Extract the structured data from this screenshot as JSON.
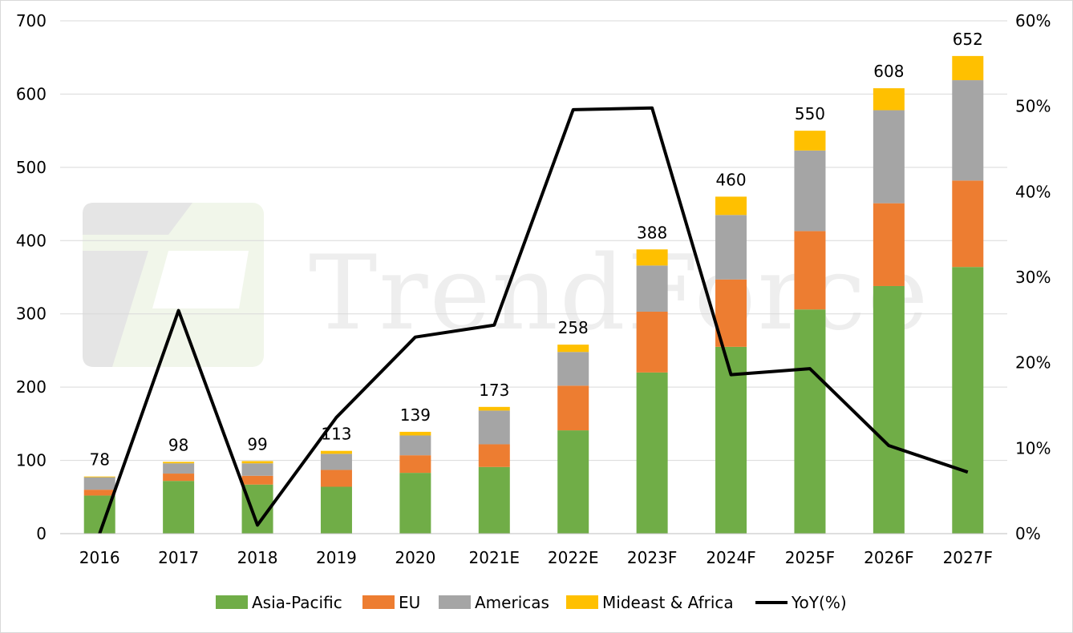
{
  "watermark": {
    "text": "TrendForce"
  },
  "chart_data": {
    "type": "bar",
    "stacked": true,
    "categories": [
      "2016",
      "2017",
      "2018",
      "2019",
      "2020",
      "2021E",
      "2022E",
      "2023F",
      "2024F",
      "2025F",
      "2026F",
      "2027F"
    ],
    "series": [
      {
        "name": "Asia-Pacific",
        "color": "#70ad47",
        "values": [
          52,
          72,
          67,
          64,
          83,
          91,
          141,
          220,
          255,
          306,
          338,
          364
        ]
      },
      {
        "name": "EU",
        "color": "#ed7d31",
        "values": [
          8,
          10,
          12,
          23,
          24,
          31,
          61,
          83,
          92,
          107,
          113,
          118
        ]
      },
      {
        "name": "Americas",
        "color": "#a5a5a5",
        "values": [
          17,
          14,
          17,
          22,
          27,
          46,
          46,
          63,
          88,
          110,
          127,
          137
        ]
      },
      {
        "name": "Mideast & Africa",
        "color": "#ffc000",
        "values": [
          1,
          2,
          3,
          4,
          5,
          5,
          10,
          22,
          25,
          27,
          30,
          33
        ]
      }
    ],
    "totals": [
      78,
      98,
      99,
      113,
      139,
      173,
      258,
      388,
      460,
      550,
      608,
      652
    ],
    "line": {
      "name": "YoY(%)",
      "color": "#000000",
      "values": [
        0,
        26.1,
        1.0,
        13.6,
        23.0,
        24.4,
        49.6,
        49.8,
        18.6,
        19.3,
        10.3,
        7.2
      ]
    },
    "ylim": [
      0,
      700
    ],
    "yticks": [
      "0",
      "100",
      "200",
      "300",
      "400",
      "500",
      "600",
      "700"
    ],
    "y2lim": [
      0,
      60
    ],
    "y2ticks": [
      "0%",
      "10%",
      "20%",
      "30%",
      "40%",
      "50%",
      "60%"
    ],
    "grid": true,
    "legend_position": "bottom"
  }
}
